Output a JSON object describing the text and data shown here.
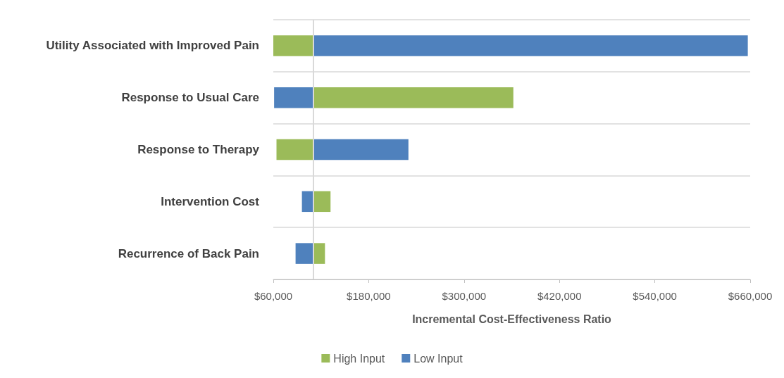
{
  "chart_data": {
    "type": "bar",
    "orientation": "horizontal",
    "xlabel": "Incremental Cost-Effectiveness Ratio",
    "categories": [
      "Utility Associated with Improved Pain",
      "Response to Usual Care",
      "Response to Therapy",
      "Intervention Cost",
      "Recurrence of Back Pain"
    ],
    "series": [
      {
        "name": "High Input",
        "color": "#9bbb59",
        "base": [
          110000,
          110000,
          110000,
          110000,
          110000
        ],
        "values": [
          -50000,
          252000,
          -46000,
          22000,
          15000
        ]
      },
      {
        "name": "Low Input",
        "color": "#4f81bd",
        "base": [
          110000,
          110000,
          110000,
          110000,
          110000
        ],
        "values": [
          547000,
          -49000,
          120000,
          -14000,
          -22000
        ]
      }
    ],
    "xlim": [
      60000,
      660000
    ],
    "xticks": [
      {
        "value": 60000,
        "label": "$60,000"
      },
      {
        "value": 180000,
        "label": "$180,000"
      },
      {
        "value": 300000,
        "label": "$300,000"
      },
      {
        "value": 420000,
        "label": "$420,000"
      },
      {
        "value": 540000,
        "label": "$540,000"
      },
      {
        "value": 660000,
        "label": "$660,000"
      }
    ],
    "ref_lines": [
      {
        "axis": "x",
        "value": 110000,
        "color": "#d9d9d9"
      }
    ],
    "grid": "y",
    "legend": "bottom"
  }
}
